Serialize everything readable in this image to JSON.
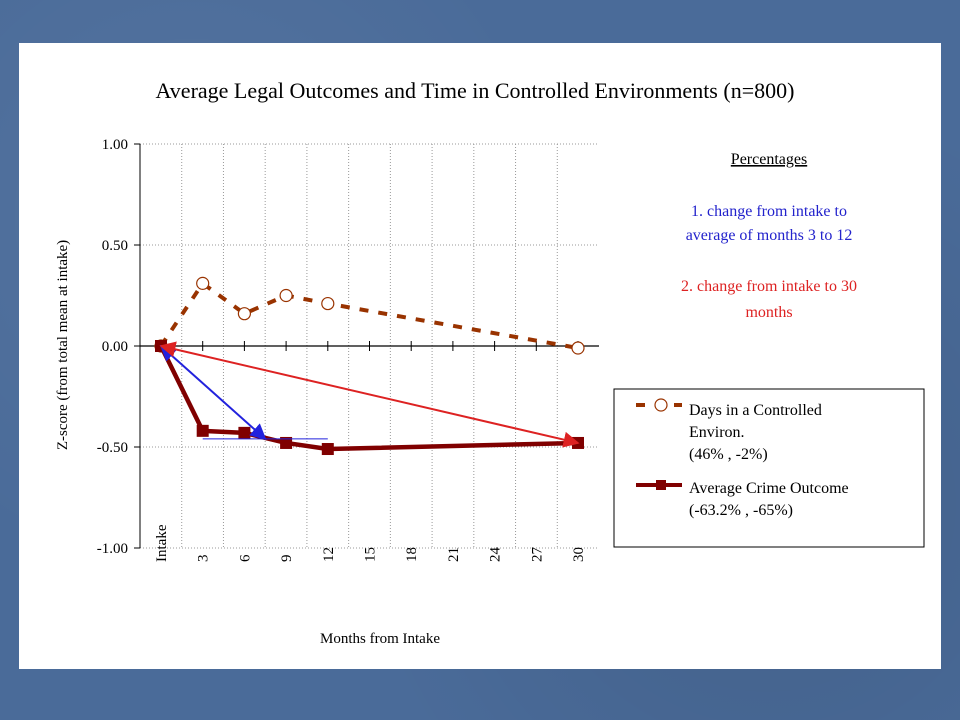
{
  "chart_data": {
    "type": "line",
    "title": "Average Legal Outcomes and Time in Controlled Environments (n=800)",
    "xlabel": "Months from Intake",
    "ylabel": "Z-score (from total mean at intake)",
    "categories": [
      "Intake",
      "3",
      "6",
      "9",
      "12",
      "15",
      "18",
      "21",
      "24",
      "27",
      "30"
    ],
    "ylim": [
      -1.0,
      1.0
    ],
    "yticks": [
      "1.00",
      "0.50",
      "0.00",
      "-0.50",
      "-1.00"
    ],
    "grid": true,
    "series": [
      {
        "name": "Days in a Controlled Environ.",
        "legend_line1": "Days in a Controlled",
        "legend_line2": "Environ.",
        "legend_line3": "(46% , -2%)",
        "style": "dashed",
        "marker": "circle",
        "color": "#993300",
        "points": [
          {
            "x": "Intake",
            "y": 0.0
          },
          {
            "x": "3",
            "y": 0.31
          },
          {
            "x": "6",
            "y": 0.16
          },
          {
            "x": "9",
            "y": 0.25
          },
          {
            "x": "12",
            "y": 0.21
          },
          {
            "x": "30",
            "y": -0.01
          }
        ]
      },
      {
        "name": "Average Crime Outcome",
        "legend_line1": "Average Crime Outcome",
        "legend_line2": "(-63.2% , -65%)",
        "style": "solid",
        "marker": "square",
        "color": "#800000",
        "points": [
          {
            "x": "Intake",
            "y": 0.0
          },
          {
            "x": "3",
            "y": -0.42
          },
          {
            "x": "6",
            "y": -0.43
          },
          {
            "x": "9",
            "y": -0.48
          },
          {
            "x": "12",
            "y": -0.51
          },
          {
            "x": "30",
            "y": -0.48
          }
        ]
      }
    ],
    "annotations": {
      "heading": "Percentages ",
      "note1_line1": "1. change from intake to",
      "note1_line2": "average of months 3 to 12",
      "note1_color": "#2222cc",
      "note2_line1": "2. change from intake to 30",
      "note2_line2": "months",
      "note2_color": "#dd2222",
      "arrows": [
        {
          "color": "#2222dd",
          "from": {
            "x": "Intake",
            "y": 0.0
          },
          "to": {
            "x": "7.5",
            "y": -0.46
          }
        },
        {
          "color": "#dd2222",
          "from": {
            "x": "Intake",
            "y": 0.0
          },
          "to": {
            "x": "30",
            "y": -0.48
          }
        }
      ],
      "reference_line": {
        "color": "#2222dd",
        "from_x": "3",
        "to_x": "12",
        "y": -0.46
      }
    }
  },
  "colors": {
    "background": "#4a6b99",
    "slide": "#ffffff"
  }
}
